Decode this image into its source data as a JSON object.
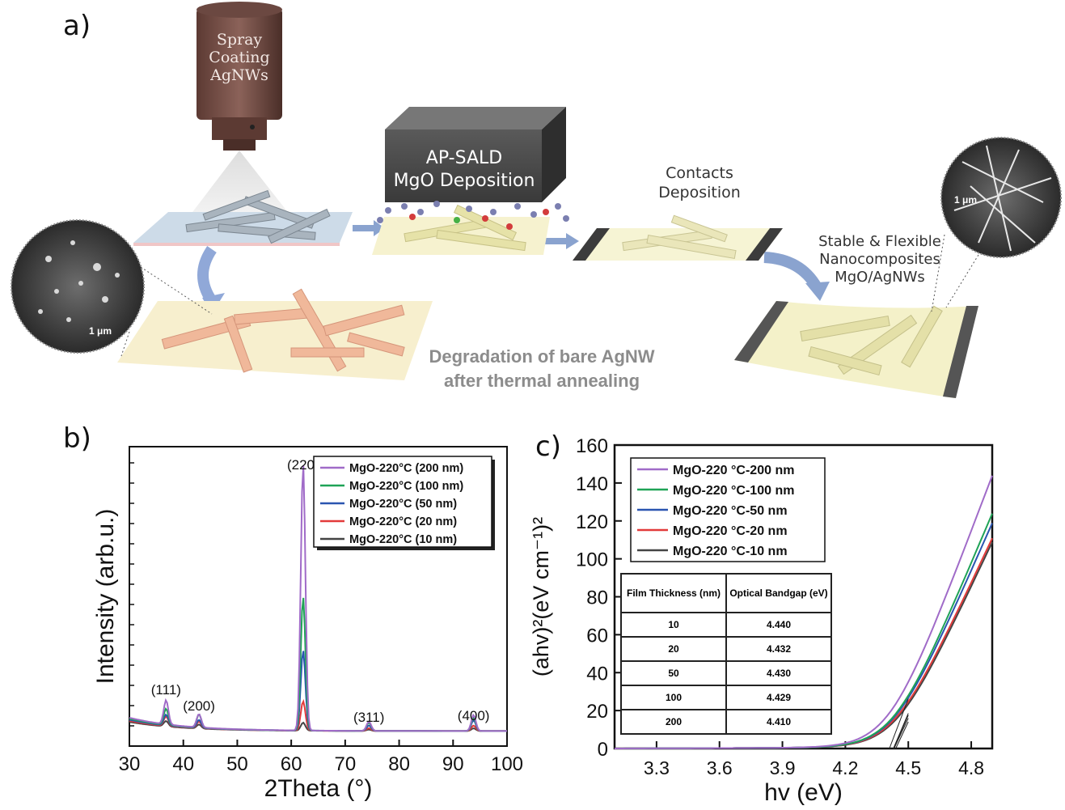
{
  "panel_labels": {
    "a": "a)",
    "b": "b)",
    "c": "c)"
  },
  "schematic": {
    "spray_label": [
      "Spray",
      "Coating",
      "AgNWs"
    ],
    "apsald_label": [
      "AP-SALD",
      "MgO Deposition"
    ],
    "contacts_label": [
      "Contacts",
      "Deposition"
    ],
    "stable_label": [
      "Stable & Flexible",
      "Nanocomposites",
      "MgO/AgNWs"
    ],
    "degradation_label": [
      "Degradation of bare AgNW",
      "after thermal annealing"
    ],
    "scale_left": "1 μm",
    "scale_right": "1 μm"
  },
  "table": {
    "headers": [
      "Film Thickness (nm)",
      "Optical Bandgap (eV)"
    ],
    "rows": [
      [
        "10",
        "4.440"
      ],
      [
        "20",
        "4.432"
      ],
      [
        "50",
        "4.430"
      ],
      [
        "100",
        "4.429"
      ],
      [
        "200",
        "4.410"
      ]
    ]
  },
  "colors": {
    "s200": "#a06bc8",
    "s100": "#1fa357",
    "s50": "#2a55b0",
    "s20": "#e23a3a",
    "s10": "#444444"
  },
  "chart_data": [
    {
      "type": "line",
      "xlabel": "2Theta (°)",
      "ylabel": "Intensity (arb.u.)",
      "xlim": [
        30,
        100
      ],
      "xticks": [
        "30",
        "40",
        "50",
        "60",
        "70",
        "80",
        "90",
        "100"
      ],
      "legend": "top-right",
      "annotations": [
        {
          "text": "(111)",
          "x": 36.8
        },
        {
          "text": "(200)",
          "x": 42.9
        },
        {
          "text": "(220)",
          "x": 62.2
        },
        {
          "text": "(311)",
          "x": 74.4
        },
        {
          "text": "(400)",
          "x": 93.8
        }
      ],
      "series": [
        {
          "name": "MgO-220°C (200 nm)",
          "peaks": [
            [
              36.8,
              0.09
            ],
            [
              42.9,
              0.05
            ],
            [
              62.2,
              1.0
            ],
            [
              74.4,
              0.035
            ],
            [
              93.8,
              0.06
            ]
          ]
        },
        {
          "name": "MgO-220°C (100 nm)",
          "peaks": [
            [
              36.8,
              0.06
            ],
            [
              42.9,
              0.05
            ],
            [
              62.2,
              0.5
            ],
            [
              74.4,
              0.03
            ],
            [
              93.8,
              0.05
            ]
          ]
        },
        {
          "name": "MgO-220°C (50 nm)",
          "peaks": [
            [
              36.8,
              0.04
            ],
            [
              42.9,
              0.03
            ],
            [
              62.2,
              0.3
            ],
            [
              74.4,
              0.02
            ],
            [
              93.8,
              0.04
            ]
          ]
        },
        {
          "name": "MgO-220°C (20 nm)",
          "peaks": [
            [
              36.8,
              0.035
            ],
            [
              42.9,
              0.025
            ],
            [
              62.2,
              0.11
            ],
            [
              74.4,
              0.01
            ],
            [
              93.8,
              0.02
            ]
          ]
        },
        {
          "name": "MgO-220°C (10 nm)",
          "peaks": [
            [
              36.8,
              0.02
            ],
            [
              42.9,
              0.015
            ],
            [
              62.2,
              0.03
            ],
            [
              74.4,
              0.005
            ],
            [
              93.8,
              0.01
            ]
          ]
        }
      ]
    },
    {
      "type": "line",
      "xlabel": "hv (eV)",
      "ylabel": "(ahv)²(eV cm⁻¹)²",
      "xlim": [
        3.1,
        4.9
      ],
      "ylim": [
        0,
        160
      ],
      "xticks": [
        "3.3",
        "3.6",
        "3.9",
        "4.2",
        "4.5",
        "4.8"
      ],
      "yticks": [
        "0",
        "20",
        "40",
        "60",
        "80",
        "100",
        "120",
        "140",
        "160"
      ],
      "legend": "top-left",
      "series": [
        {
          "name": "MgO-220 °C-200 nm",
          "bandgap": 4.41,
          "end_value": 143
        },
        {
          "name": "MgO-220 °C-100 nm",
          "bandgap": 4.429,
          "end_value": 123
        },
        {
          "name": "MgO-220 °C-50 nm",
          "bandgap": 4.43,
          "end_value": 118
        },
        {
          "name": "MgO-220 °C-20 nm",
          "bandgap": 4.432,
          "end_value": 110
        },
        {
          "name": "MgO-220 °C-10 nm",
          "bandgap": 4.44,
          "end_value": 108
        }
      ]
    }
  ]
}
